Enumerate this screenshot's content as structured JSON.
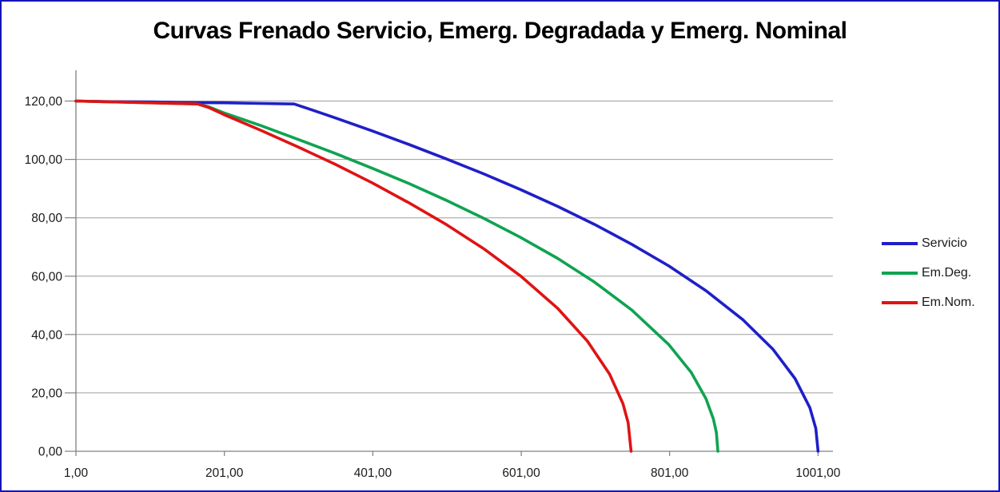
{
  "title": "Curvas Frenado Servicio, Emerg. Degradada y Emerg. Nominal",
  "colors": {
    "frame_border": "#1414b8",
    "background": "#ffffff",
    "title_text": "#000000",
    "axis": "#808080",
    "grid": "#9d9d9d",
    "tick_text": "#1a1a1a"
  },
  "chart_data": {
    "type": "line",
    "title": "Curvas Frenado Servicio, Emerg. Degradada y Emerg. Nominal",
    "xlabel": "",
    "ylabel": "",
    "xlim": [
      1,
      1021
    ],
    "ylim": [
      0,
      130
    ],
    "grid": "horizontal-only",
    "legend_position": "right-middle",
    "x_ticks": [
      {
        "value": 1,
        "label": "1,00"
      },
      {
        "value": 201,
        "label": "201,00"
      },
      {
        "value": 401,
        "label": "401,00"
      },
      {
        "value": 601,
        "label": "601,00"
      },
      {
        "value": 801,
        "label": "801,00"
      },
      {
        "value": 1001,
        "label": "1001,00"
      }
    ],
    "y_ticks": [
      {
        "value": 0,
        "label": "0,00"
      },
      {
        "value": 20,
        "label": "20,00"
      },
      {
        "value": 40,
        "label": "40,00"
      },
      {
        "value": 60,
        "label": "60,00"
      },
      {
        "value": 80,
        "label": "80,00"
      },
      {
        "value": 100,
        "label": "100,00"
      },
      {
        "value": 120,
        "label": "120,00"
      }
    ],
    "series": [
      {
        "name": "Servicio",
        "color": "#1f1fc8",
        "points": [
          [
            1,
            120
          ],
          [
            50,
            119.8
          ],
          [
            100,
            119.7
          ],
          [
            150,
            119.5
          ],
          [
            200,
            119.4
          ],
          [
            250,
            119.2
          ],
          [
            295,
            119
          ],
          [
            320,
            116.9
          ],
          [
            350,
            114.3
          ],
          [
            400,
            109.8
          ],
          [
            450,
            105.1
          ],
          [
            500,
            100.2
          ],
          [
            550,
            95.1
          ],
          [
            600,
            89.7
          ],
          [
            650,
            83.9
          ],
          [
            700,
            77.7
          ],
          [
            750,
            70.9
          ],
          [
            800,
            63.5
          ],
          [
            850,
            55.0
          ],
          [
            900,
            45.0
          ],
          [
            940,
            35.0
          ],
          [
            970,
            24.9
          ],
          [
            990,
            14.9
          ],
          [
            998,
            7.8
          ],
          [
            1001,
            0
          ]
        ]
      },
      {
        "name": "Em.Deg.",
        "color": "#0fa351",
        "points": [
          [
            1,
            120
          ],
          [
            50,
            119.7
          ],
          [
            100,
            119.4
          ],
          [
            165,
            119
          ],
          [
            180,
            118
          ],
          [
            200,
            116
          ],
          [
            250,
            111.6
          ],
          [
            300,
            106.9
          ],
          [
            350,
            102.1
          ],
          [
            400,
            97
          ],
          [
            450,
            91.7
          ],
          [
            500,
            86
          ],
          [
            550,
            79.9
          ],
          [
            600,
            73.3
          ],
          [
            650,
            66.1
          ],
          [
            700,
            57.9
          ],
          [
            750,
            48.4
          ],
          [
            800,
            36.5
          ],
          [
            830,
            27
          ],
          [
            850,
            18
          ],
          [
            860,
            11
          ],
          [
            864,
            6.4
          ],
          [
            866,
            0
          ]
        ]
      },
      {
        "name": "Em.Nom.",
        "color": "#e01313",
        "points": [
          [
            1,
            120
          ],
          [
            50,
            119.7
          ],
          [
            100,
            119.4
          ],
          [
            165,
            119
          ],
          [
            180,
            117.8
          ],
          [
            200,
            115.4
          ],
          [
            250,
            110
          ],
          [
            300,
            104.3
          ],
          [
            350,
            98.4
          ],
          [
            400,
            92
          ],
          [
            450,
            85.1
          ],
          [
            500,
            77.7
          ],
          [
            550,
            69.5
          ],
          [
            600,
            60.1
          ],
          [
            650,
            49
          ],
          [
            690,
            37.8
          ],
          [
            720,
            26.5
          ],
          [
            738,
            16.3
          ],
          [
            745,
            9.8
          ],
          [
            749,
            0
          ]
        ]
      }
    ]
  }
}
